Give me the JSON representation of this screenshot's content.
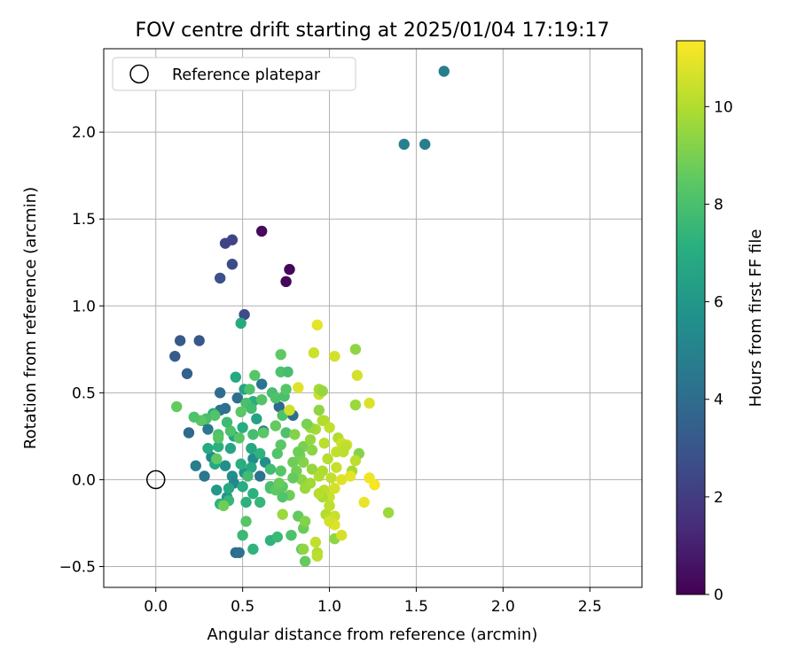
{
  "chart_data": {
    "type": "scatter",
    "title": "FOV centre drift starting at 2025/01/04 17:19:17",
    "xlabel": "Angular distance from reference (arcmin)",
    "ylabel": "Rotation from reference (arcmin)",
    "xlim": [
      -0.3,
      2.8
    ],
    "ylim": [
      -0.62,
      2.48
    ],
    "xticks": [
      0.0,
      0.5,
      1.0,
      1.5,
      2.0,
      2.5
    ],
    "xtick_labels": [
      "0.0",
      "0.5",
      "1.0",
      "1.5",
      "2.0",
      "2.5"
    ],
    "yticks": [
      -0.5,
      0.0,
      0.5,
      1.0,
      1.5,
      2.0
    ],
    "ytick_labels": [
      "−0.5",
      "0.0",
      "0.5",
      "1.0",
      "1.5",
      "2.0"
    ],
    "grid": true,
    "colormap": "viridis",
    "colorbar": {
      "label": "Hours from first FF file",
      "range": [
        0,
        11.35
      ],
      "ticks": [
        0,
        2,
        4,
        6,
        8,
        10
      ],
      "tick_labels": [
        "0",
        "2",
        "4",
        "6",
        "8",
        "10"
      ]
    },
    "legend": {
      "position": "top-left",
      "entries": [
        {
          "label": "Reference platepar",
          "marker": "open-circle"
        }
      ]
    },
    "reference_point": {
      "x": 0.0,
      "y": 0.0
    },
    "points": [
      [
        1.66,
        2.35,
        4.8
      ],
      [
        1.43,
        1.93,
        4.9
      ],
      [
        1.55,
        1.93,
        4.8
      ],
      [
        0.61,
        1.43,
        0.3
      ],
      [
        0.77,
        1.21,
        0.2
      ],
      [
        0.75,
        1.14,
        0.2
      ],
      [
        0.4,
        1.36,
        2.3
      ],
      [
        0.44,
        1.38,
        2.3
      ],
      [
        0.44,
        1.24,
        2.6
      ],
      [
        0.37,
        1.16,
        2.8
      ],
      [
        0.51,
        0.95,
        2.6
      ],
      [
        0.14,
        0.8,
        3.2
      ],
      [
        0.25,
        0.8,
        3.1
      ],
      [
        0.11,
        0.71,
        3.3
      ],
      [
        0.18,
        0.61,
        3.5
      ],
      [
        0.37,
        0.5,
        4.0
      ],
      [
        0.4,
        0.41,
        4.2
      ],
      [
        0.37,
        0.4,
        4.3
      ],
      [
        0.47,
        0.47,
        4.1
      ],
      [
        0.61,
        0.55,
        4.4
      ],
      [
        0.71,
        0.42,
        3.8
      ],
      [
        0.79,
        0.37,
        4.0
      ],
      [
        0.19,
        0.27,
        3.8
      ],
      [
        0.27,
        0.34,
        4.1
      ],
      [
        0.3,
        0.29,
        4.5
      ],
      [
        0.23,
        0.08,
        4.8
      ],
      [
        0.28,
        0.02,
        4.5
      ],
      [
        0.62,
        0.28,
        4.6
      ],
      [
        0.6,
        0.02,
        4.3
      ],
      [
        0.46,
        -0.42,
        4.0
      ],
      [
        0.48,
        -0.42,
        4.2
      ],
      [
        0.32,
        0.13,
        5.3
      ],
      [
        0.4,
        0.08,
        5.6
      ],
      [
        0.44,
        0.02,
        5.5
      ],
      [
        0.45,
        -0.02,
        5.2
      ],
      [
        0.51,
        0.04,
        5.8
      ],
      [
        0.56,
        0.12,
        5.5
      ],
      [
        0.63,
        0.1,
        5.6
      ],
      [
        0.35,
        -0.06,
        6.0
      ],
      [
        0.41,
        -0.1,
        5.9
      ],
      [
        0.49,
        0.9,
        6.9
      ],
      [
        0.46,
        0.59,
        6.8
      ],
      [
        0.51,
        0.52,
        6.6
      ],
      [
        0.56,
        0.45,
        7.1
      ],
      [
        0.58,
        0.35,
        6.5
      ],
      [
        0.5,
        0.3,
        7.0
      ],
      [
        0.45,
        0.25,
        6.6
      ],
      [
        0.33,
        0.38,
        7.0
      ],
      [
        0.36,
        0.19,
        7.2
      ],
      [
        0.3,
        0.18,
        6.9
      ],
      [
        0.34,
        0.09,
        6.7
      ],
      [
        0.43,
        0.18,
        6.6
      ],
      [
        0.55,
        0.18,
        6.7
      ],
      [
        0.55,
        0.07,
        6.8
      ],
      [
        0.6,
        0.15,
        7.3
      ],
      [
        0.49,
        0.09,
        7.1
      ],
      [
        0.42,
        -0.05,
        6.8
      ],
      [
        0.5,
        -0.04,
        7.0
      ],
      [
        0.56,
        -0.08,
        7.2
      ],
      [
        0.37,
        -0.14,
        7.3
      ],
      [
        0.42,
        -0.12,
        7.5
      ],
      [
        0.52,
        -0.13,
        7.2
      ],
      [
        0.39,
        -0.15,
        8.8
      ],
      [
        0.52,
        -0.24,
        8.3
      ],
      [
        0.5,
        -0.32,
        7.6
      ],
      [
        0.56,
        -0.4,
        7.3
      ],
      [
        0.66,
        -0.35,
        7.3
      ],
      [
        0.7,
        -0.33,
        7.6
      ],
      [
        0.78,
        -0.32,
        8.1
      ],
      [
        0.84,
        -0.4,
        8.4
      ],
      [
        0.86,
        -0.47,
        8.6
      ],
      [
        0.85,
        -0.28,
        8.7
      ],
      [
        0.82,
        -0.21,
        8.6
      ],
      [
        0.86,
        -0.24,
        9.2
      ],
      [
        0.73,
        -0.2,
        9.6
      ],
      [
        0.77,
        -0.09,
        8.8
      ],
      [
        0.73,
        -0.1,
        8.2
      ],
      [
        0.66,
        -0.05,
        8.1
      ],
      [
        0.6,
        -0.13,
        7.5
      ],
      [
        0.53,
        0.02,
        7.8
      ],
      [
        0.66,
        0.06,
        7.8
      ],
      [
        0.72,
        0.05,
        8.3
      ],
      [
        0.7,
        0.15,
        8.2
      ],
      [
        0.72,
        0.2,
        8.4
      ],
      [
        0.75,
        0.27,
        8.1
      ],
      [
        0.69,
        0.31,
        8.6
      ],
      [
        0.73,
        0.37,
        8.1
      ],
      [
        0.62,
        0.27,
        8.4
      ],
      [
        0.56,
        0.26,
        7.9
      ],
      [
        0.48,
        0.24,
        8.3
      ],
      [
        0.43,
        0.28,
        8.1
      ],
      [
        0.41,
        0.33,
        7.7
      ],
      [
        0.34,
        0.37,
        8.2
      ],
      [
        0.29,
        0.35,
        8.0
      ],
      [
        0.26,
        0.34,
        8.4
      ],
      [
        0.22,
        0.36,
        8.1
      ],
      [
        0.12,
        0.42,
        8.6
      ],
      [
        0.52,
        0.44,
        8.0
      ],
      [
        0.55,
        0.41,
        7.8
      ],
      [
        0.61,
        0.46,
        8.2
      ],
      [
        0.67,
        0.5,
        7.9
      ],
      [
        0.69,
        0.47,
        8.1
      ],
      [
        0.74,
        0.48,
        8.0
      ],
      [
        0.75,
        0.52,
        8.3
      ],
      [
        0.72,
        0.62,
        8.1
      ],
      [
        0.76,
        0.62,
        7.9
      ],
      [
        0.72,
        0.72,
        8.5
      ],
      [
        0.57,
        0.6,
        8.3
      ],
      [
        0.54,
        0.52,
        8.1
      ],
      [
        0.49,
        0.39,
        8.4
      ],
      [
        0.36,
        0.26,
        8.1
      ],
      [
        0.36,
        0.24,
        8.3
      ],
      [
        0.35,
        0.12,
        8.5
      ],
      [
        0.82,
        0.53,
        10.8
      ],
      [
        0.77,
        0.4,
        10.5
      ],
      [
        0.8,
        0.26,
        9.2
      ],
      [
        0.85,
        0.19,
        9.0
      ],
      [
        0.89,
        0.23,
        9.5
      ],
      [
        0.92,
        0.29,
        9.8
      ],
      [
        0.97,
        0.34,
        10.0
      ],
      [
        1.0,
        0.3,
        10.3
      ],
      [
        1.05,
        0.24,
        10.0
      ],
      [
        1.1,
        0.2,
        10.6
      ],
      [
        1.08,
        0.16,
        10.2
      ],
      [
        1.13,
        0.05,
        9.8
      ],
      [
        1.17,
        0.15,
        9.2
      ],
      [
        1.15,
        0.11,
        10.2
      ],
      [
        1.04,
        0.07,
        10.4
      ],
      [
        1.01,
        0.01,
        10.3
      ],
      [
        0.96,
        0.05,
        9.9
      ],
      [
        0.9,
        0.06,
        9.5
      ],
      [
        0.85,
        0.1,
        9.2
      ],
      [
        0.83,
        0.14,
        9.0
      ],
      [
        0.79,
        0.1,
        8.8
      ],
      [
        0.81,
        0.05,
        8.9
      ],
      [
        0.84,
        0.0,
        9.3
      ],
      [
        0.86,
        -0.05,
        9.6
      ],
      [
        0.89,
        -0.02,
        9.7
      ],
      [
        0.94,
        0.02,
        10.0
      ],
      [
        0.97,
        -0.06,
        10.2
      ],
      [
        1.0,
        -0.1,
        10.4
      ],
      [
        1.03,
        -0.05,
        10.6
      ],
      [
        1.07,
        0.0,
        10.8
      ],
      [
        1.12,
        0.02,
        10.9
      ],
      [
        1.2,
        -0.13,
        11.0
      ],
      [
        1.23,
        0.01,
        11.1
      ],
      [
        1.26,
        -0.03,
        11.2
      ],
      [
        1.34,
        -0.19,
        9.6
      ],
      [
        0.98,
        -0.2,
        10.0
      ],
      [
        1.0,
        -0.22,
        10.1
      ],
      [
        1.03,
        -0.21,
        10.4
      ],
      [
        1.03,
        -0.26,
        10.8
      ],
      [
        1.0,
        -0.24,
        10.6
      ],
      [
        1.03,
        -0.34,
        9.4
      ],
      [
        1.07,
        -0.32,
        10.6
      ],
      [
        0.92,
        -0.36,
        10.3
      ],
      [
        0.93,
        -0.42,
        10.0
      ],
      [
        0.93,
        -0.44,
        10.2
      ],
      [
        0.85,
        -0.4,
        9.4
      ],
      [
        0.96,
        -0.1,
        9.9
      ],
      [
        1.0,
        -0.15,
        10.2
      ],
      [
        0.94,
        -0.08,
        10.1
      ],
      [
        0.91,
        0.73,
        10.5
      ],
      [
        1.03,
        0.71,
        10.6
      ],
      [
        0.93,
        0.89,
        10.9
      ],
      [
        1.15,
        0.75,
        9.4
      ],
      [
        1.16,
        0.6,
        10.6
      ],
      [
        1.15,
        0.43,
        9.6
      ],
      [
        1.23,
        0.44,
        10.7
      ],
      [
        0.94,
        0.49,
        10.4
      ],
      [
        0.94,
        0.52,
        9.8
      ],
      [
        0.96,
        0.51,
        9.5
      ],
      [
        0.94,
        0.4,
        9.4
      ],
      [
        0.96,
        0.34,
        10.0
      ],
      [
        0.97,
        0.21,
        10.2
      ],
      [
        1.04,
        0.16,
        10.3
      ],
      [
        1.07,
        0.21,
        10.5
      ],
      [
        1.09,
        0.19,
        10.2
      ],
      [
        0.99,
        0.12,
        10.1
      ],
      [
        0.89,
        0.3,
        9.6
      ],
      [
        0.87,
        0.32,
        9.0
      ],
      [
        0.9,
        0.17,
        9.3
      ],
      [
        0.82,
        0.16,
        8.8
      ],
      [
        0.79,
        0.01,
        8.6
      ],
      [
        0.73,
        -0.04,
        8.4
      ],
      [
        0.66,
        -0.04,
        8.0
      ],
      [
        0.69,
        -0.06,
        8.5
      ],
      [
        0.71,
        -0.02,
        8.7
      ]
    ]
  }
}
